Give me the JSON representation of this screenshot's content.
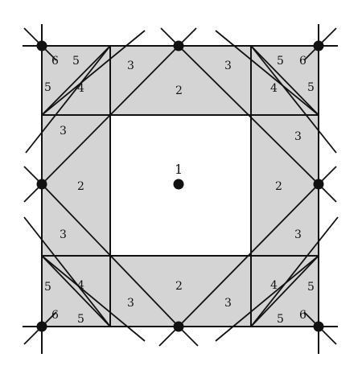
{
  "diagram": {
    "colors": {
      "shaded": "#d4d4d4",
      "line": "#111111",
      "point": "#111111",
      "background": "#ffffff"
    },
    "center_label": "1",
    "labels": {
      "center": "1",
      "square_side": "2",
      "square_corner_adjacent": "3",
      "corner_cell": "4",
      "corner_side": "5",
      "corner": "6"
    }
  }
}
